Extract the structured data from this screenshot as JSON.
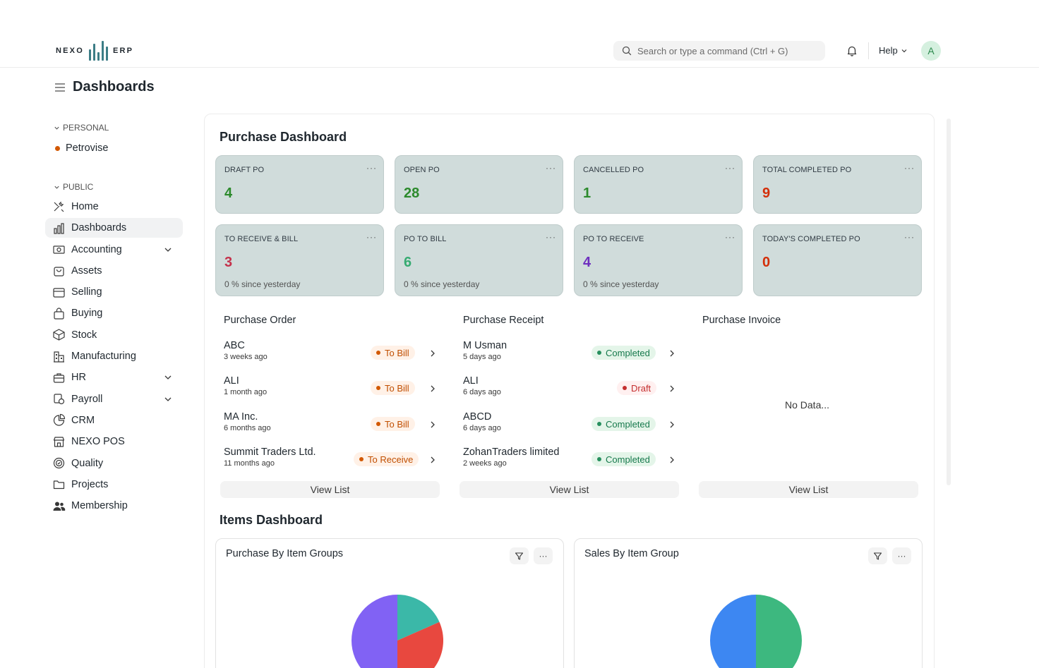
{
  "brand": {
    "word_left": "NEXO",
    "word_right": "ERP",
    "accent": "#3c7d86"
  },
  "search": {
    "placeholder": "Search or type a command (Ctrl + G)"
  },
  "navbar": {
    "help_label": "Help",
    "avatar_initial": "A"
  },
  "page": {
    "title": "Dashboards"
  },
  "sidebar": {
    "personal_label": "PERSONAL",
    "personal_items": [
      {
        "label": "Petrovise",
        "icon": "dot-icon"
      }
    ],
    "public_label": "PUBLIC",
    "items": [
      {
        "label": "Home",
        "icon": "tools-icon"
      },
      {
        "label": "Dashboards",
        "icon": "bar-chart-icon",
        "active": true
      },
      {
        "label": "Accounting",
        "icon": "money-icon",
        "expandable": true
      },
      {
        "label": "Assets",
        "icon": "bag-icon"
      },
      {
        "label": "Selling",
        "icon": "card-icon"
      },
      {
        "label": "Buying",
        "icon": "shopping-bag-icon"
      },
      {
        "label": "Stock",
        "icon": "box-icon"
      },
      {
        "label": "Manufacturing",
        "icon": "factory-icon"
      },
      {
        "label": "HR",
        "icon": "briefcase-icon",
        "expandable": true
      },
      {
        "label": "Payroll",
        "icon": "payroll-icon",
        "expandable": true
      },
      {
        "label": "CRM",
        "icon": "pie-icon"
      },
      {
        "label": "NEXO POS",
        "icon": "store-icon"
      },
      {
        "label": "Quality",
        "icon": "quality-icon"
      },
      {
        "label": "Projects",
        "icon": "folder-icon"
      },
      {
        "label": "Membership",
        "icon": "users-icon"
      }
    ]
  },
  "purchase_dashboard": {
    "title": "Purchase Dashboard",
    "cards": [
      {
        "label": "DRAFT PO",
        "value": "4",
        "color": "#2c8a2c"
      },
      {
        "label": "OPEN PO",
        "value": "28",
        "color": "#2c8a2c"
      },
      {
        "label": "CANCELLED PO",
        "value": "1",
        "color": "#2c8a2c"
      },
      {
        "label": "TOTAL COMPLETED PO",
        "value": "9",
        "color": "#d32f0a"
      },
      {
        "label": "TO RECEIVE & BILL",
        "value": "3",
        "color": "#c4314b",
        "sub": "0 % since yesterday"
      },
      {
        "label": "PO TO BILL",
        "value": "6",
        "color": "#36ab71",
        "sub": "0 % since yesterday"
      },
      {
        "label": "PO TO RECEIVE",
        "value": "4",
        "color": "#6e2fbf",
        "sub": "0 % since yesterday"
      },
      {
        "label": "TODAY'S COMPLETED PO",
        "value": "0",
        "color": "#d32f0a"
      }
    ],
    "more_label": "···"
  },
  "lists": [
    {
      "title": "Purchase Order",
      "rows": [
        {
          "name": "ABC",
          "time": "3 weeks ago",
          "status": "To Bill",
          "tone": "orange"
        },
        {
          "name": "ALI",
          "time": "1 month ago",
          "status": "To Bill",
          "tone": "orange"
        },
        {
          "name": "MA Inc.",
          "time": "6 months ago",
          "status": "To Bill",
          "tone": "orange"
        },
        {
          "name": "Summit Traders Ltd.",
          "time": "11 months ago",
          "status": "To Receive",
          "tone": "orange"
        }
      ],
      "view_label": "View List"
    },
    {
      "title": "Purchase Receipt",
      "rows": [
        {
          "name": "M Usman",
          "time": "5 days ago",
          "status": "Completed",
          "tone": "green"
        },
        {
          "name": "ALI",
          "time": "6 days ago",
          "status": "Draft",
          "tone": "red"
        },
        {
          "name": "ABCD",
          "time": "6 days ago",
          "status": "Completed",
          "tone": "green"
        },
        {
          "name": "ZohanTraders limited",
          "time": "2 weeks ago",
          "status": "Completed",
          "tone": "green"
        }
      ],
      "view_label": "View List"
    },
    {
      "title": "Purchase Invoice",
      "rows": [],
      "empty_label": "No Data...",
      "view_label": "View List"
    }
  ],
  "items_dashboard": {
    "title": "Items Dashboard",
    "charts": [
      {
        "title": "Purchase By Item Groups",
        "colors": [
          "#3bb8a8",
          "#e8483f",
          "#8162f4"
        ]
      },
      {
        "title": "Sales By Item Group",
        "colors": [
          "#3db87f",
          "#3d87f2"
        ]
      }
    ]
  }
}
